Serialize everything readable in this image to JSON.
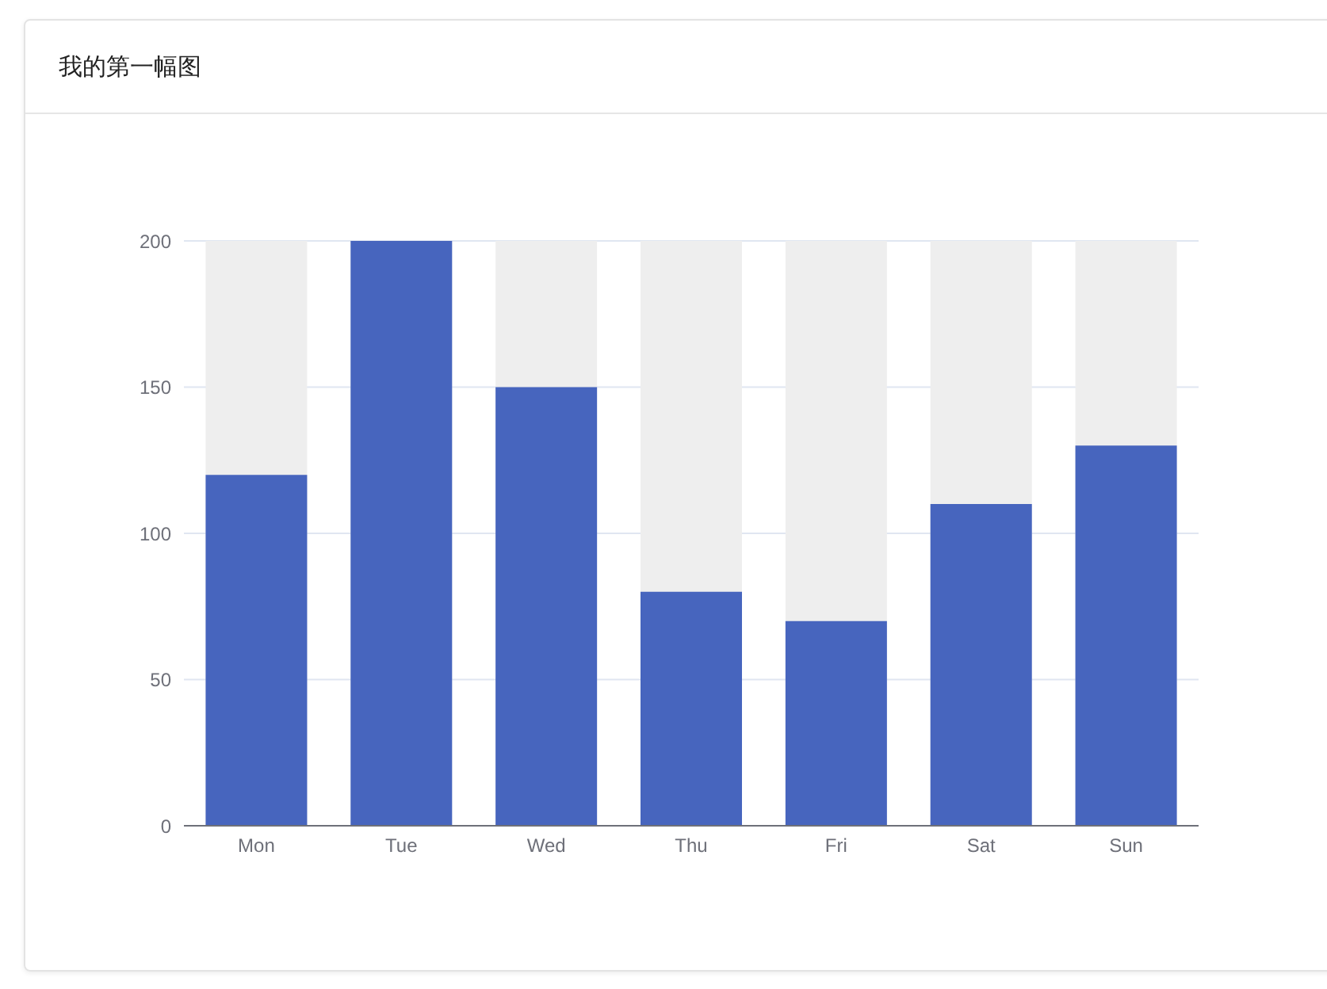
{
  "chart_data": {
    "type": "bar",
    "title": "我的第一幅图",
    "categories": [
      "Mon",
      "Tue",
      "Wed",
      "Thu",
      "Fri",
      "Sat",
      "Sun"
    ],
    "values": [
      120,
      200,
      150,
      80,
      70,
      110,
      130
    ],
    "color": "#4765be",
    "ylim": [
      0,
      200
    ],
    "yticks": [
      0,
      50,
      100,
      150,
      200
    ],
    "grid": "y"
  }
}
